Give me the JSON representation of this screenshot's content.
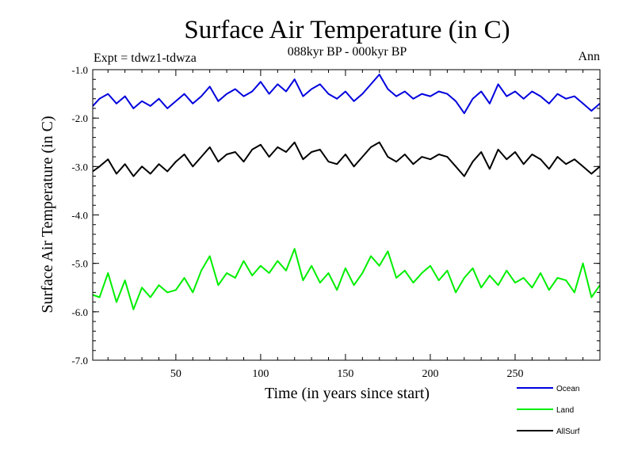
{
  "chart_data": {
    "type": "line",
    "title": "Surface Air Temperature (in C)",
    "subtitle": "088kyr BP - 000kyr BP",
    "experiment": "Expt = tdwz1-tdwza",
    "season": "Ann",
    "xlabel": "Time (in years since start)",
    "ylabel": "Surface Air Temperature (in C)",
    "xlim": [
      1,
      300
    ],
    "ylim": [
      -7.0,
      -1.0
    ],
    "x_ticks": [
      50,
      100,
      150,
      200,
      250
    ],
    "x_tick_labels": [
      "50",
      "100",
      "150",
      "200",
      "250"
    ],
    "y_ticks": [
      -1.0,
      -2.0,
      -3.0,
      -4.0,
      -5.0,
      -6.0,
      -7.0
    ],
    "y_tick_labels": [
      "-1.0",
      "-2.0",
      "-3.0",
      "-4.0",
      "-5.0",
      "-6.0",
      "-7.0"
    ],
    "series": [
      {
        "name": "Ocean",
        "color": "#0000dd",
        "x": [
          1,
          5,
          10,
          15,
          20,
          25,
          30,
          35,
          40,
          45,
          50,
          55,
          60,
          65,
          70,
          75,
          80,
          85,
          90,
          95,
          100,
          105,
          110,
          115,
          120,
          125,
          130,
          135,
          140,
          145,
          150,
          155,
          160,
          165,
          170,
          175,
          180,
          185,
          190,
          195,
          200,
          205,
          210,
          215,
          220,
          225,
          230,
          235,
          240,
          245,
          250,
          255,
          260,
          265,
          270,
          275,
          280,
          285,
          290,
          295,
          300
        ],
        "values": [
          -1.75,
          -1.6,
          -1.5,
          -1.7,
          -1.55,
          -1.8,
          -1.65,
          -1.75,
          -1.6,
          -1.8,
          -1.65,
          -1.5,
          -1.7,
          -1.55,
          -1.35,
          -1.65,
          -1.5,
          -1.4,
          -1.55,
          -1.45,
          -1.25,
          -1.5,
          -1.3,
          -1.45,
          -1.2,
          -1.55,
          -1.4,
          -1.3,
          -1.5,
          -1.6,
          -1.45,
          -1.65,
          -1.5,
          -1.3,
          -1.1,
          -1.4,
          -1.55,
          -1.45,
          -1.6,
          -1.5,
          -1.55,
          -1.45,
          -1.5,
          -1.65,
          -1.9,
          -1.6,
          -1.45,
          -1.7,
          -1.3,
          -1.55,
          -1.45,
          -1.6,
          -1.45,
          -1.55,
          -1.7,
          -1.5,
          -1.6,
          -1.55,
          -1.7,
          -1.85,
          -1.7
        ]
      },
      {
        "name": "Land",
        "color": "#00ee00",
        "x": [
          1,
          5,
          10,
          15,
          20,
          25,
          30,
          35,
          40,
          45,
          50,
          55,
          60,
          65,
          70,
          75,
          80,
          85,
          90,
          95,
          100,
          105,
          110,
          115,
          120,
          125,
          130,
          135,
          140,
          145,
          150,
          155,
          160,
          165,
          170,
          175,
          180,
          185,
          190,
          195,
          200,
          205,
          210,
          215,
          220,
          225,
          230,
          235,
          240,
          245,
          250,
          255,
          260,
          265,
          270,
          275,
          280,
          285,
          290,
          295,
          300
        ],
        "values": [
          -5.65,
          -5.7,
          -5.2,
          -5.8,
          -5.35,
          -5.95,
          -5.5,
          -5.7,
          -5.45,
          -5.6,
          -5.55,
          -5.3,
          -5.6,
          -5.15,
          -4.85,
          -5.45,
          -5.2,
          -5.3,
          -4.95,
          -5.25,
          -5.05,
          -5.2,
          -4.95,
          -5.15,
          -4.7,
          -5.35,
          -5.05,
          -5.4,
          -5.2,
          -5.55,
          -5.1,
          -5.45,
          -5.2,
          -4.85,
          -5.05,
          -4.75,
          -5.3,
          -5.15,
          -5.4,
          -5.2,
          -5.05,
          -5.35,
          -5.15,
          -5.6,
          -5.3,
          -5.1,
          -5.5,
          -5.25,
          -5.45,
          -5.15,
          -5.4,
          -5.3,
          -5.5,
          -5.2,
          -5.55,
          -5.3,
          -5.35,
          -5.6,
          -5.0,
          -5.7,
          -5.45
        ]
      },
      {
        "name": "AllSurf",
        "color": "#000000",
        "x": [
          1,
          5,
          10,
          15,
          20,
          25,
          30,
          35,
          40,
          45,
          50,
          55,
          60,
          65,
          70,
          75,
          80,
          85,
          90,
          95,
          100,
          105,
          110,
          115,
          120,
          125,
          130,
          135,
          140,
          145,
          150,
          155,
          160,
          165,
          170,
          175,
          180,
          185,
          190,
          195,
          200,
          205,
          210,
          215,
          220,
          225,
          230,
          235,
          240,
          245,
          250,
          255,
          260,
          265,
          270,
          275,
          280,
          285,
          290,
          295,
          300
        ],
        "values": [
          -3.1,
          -3.0,
          -2.85,
          -3.15,
          -2.95,
          -3.2,
          -3.0,
          -3.15,
          -2.95,
          -3.1,
          -2.9,
          -2.75,
          -3.0,
          -2.8,
          -2.6,
          -2.9,
          -2.75,
          -2.7,
          -2.9,
          -2.65,
          -2.55,
          -2.8,
          -2.6,
          -2.7,
          -2.5,
          -2.85,
          -2.7,
          -2.65,
          -2.9,
          -2.95,
          -2.75,
          -3.0,
          -2.8,
          -2.6,
          -2.5,
          -2.8,
          -2.9,
          -2.75,
          -2.95,
          -2.8,
          -2.85,
          -2.75,
          -2.8,
          -3.0,
          -3.2,
          -2.9,
          -2.7,
          -3.05,
          -2.65,
          -2.85,
          -2.7,
          -2.95,
          -2.75,
          -2.85,
          -3.05,
          -2.8,
          -2.95,
          -2.85,
          -3.0,
          -3.15,
          -3.0
        ]
      }
    ],
    "legend_position": "bottom-right"
  }
}
